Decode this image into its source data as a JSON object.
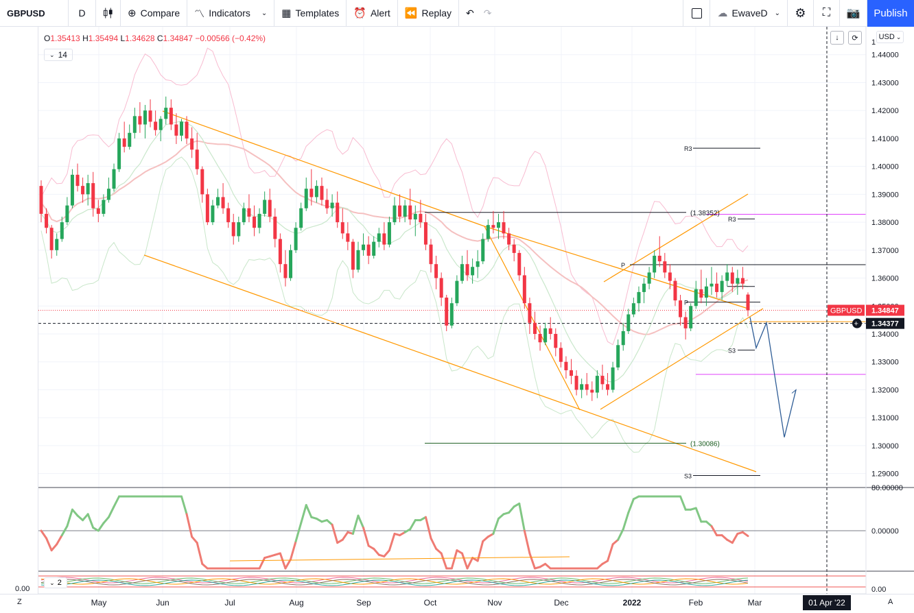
{
  "toolbar": {
    "symbol": "GBPUSD",
    "interval": "D",
    "compare": "Compare",
    "indicators": "Indicators",
    "templates": "Templates",
    "alert": "Alert",
    "replay": "Replay",
    "account": "EwaveD",
    "publish": "Publish"
  },
  "legend": {
    "o_label": "O",
    "o_value": "1.35413",
    "h_label": "H",
    "h_value": "1.35494",
    "l_label": "L",
    "l_value": "1.34628",
    "c_label": "C",
    "c_value": "1.34847",
    "change": "−0.00566 (−0.42%)",
    "input_value": "14",
    "osc2_input": "2"
  },
  "currency": "USD",
  "bottom": {
    "left_z": "Z",
    "right_a": "A",
    "date_label": "01 Apr '22"
  },
  "colors": {
    "up": "#26a65b",
    "down": "#f23645",
    "orange": "#ff9800",
    "magenta": "#e040fb",
    "arrow": "#2f5d96",
    "accent": "#2962ff"
  },
  "chart_data": {
    "type": "candlestick",
    "symbol": "GBPUSD",
    "ylim": [
      1.285,
      1.45
    ],
    "y_ticks": [
      "1.44000",
      "1.43000",
      "1.42000",
      "1.41000",
      "1.40000",
      "1.39000",
      "1.38000",
      "1.37000",
      "1.36000",
      "1.35000",
      "1.34000",
      "1.33000",
      "1.32000",
      "1.31000",
      "1.30000",
      "1.29000"
    ],
    "y_ticks_partial": [
      "1"
    ],
    "x_ticks": [
      "May",
      "Jun",
      "Jul",
      "Aug",
      "Sep",
      "Oct",
      "Nov",
      "Dec",
      "2022",
      "Feb",
      "Mar"
    ],
    "last_price_label": "GBPUSD",
    "last_price": "1.34847",
    "crosshair_price": "1.34377",
    "annotations": {
      "level_high": "(1.38352)",
      "level_low": "(1.30086)",
      "r3": "R3",
      "s3": "S3",
      "p": "P"
    },
    "candles": [
      [
        1.393,
        1.395,
        1.38,
        1.383
      ],
      [
        1.383,
        1.385,
        1.376,
        1.378
      ],
      [
        1.378,
        1.379,
        1.367,
        1.37
      ],
      [
        1.37,
        1.376,
        1.368,
        1.374
      ],
      [
        1.374,
        1.382,
        1.373,
        1.38
      ],
      [
        1.38,
        1.389,
        1.379,
        1.386
      ],
      [
        1.386,
        1.399,
        1.385,
        1.397
      ],
      [
        1.397,
        1.401,
        1.391,
        1.393
      ],
      [
        1.393,
        1.396,
        1.387,
        1.39
      ],
      [
        1.39,
        1.397,
        1.386,
        1.394
      ],
      [
        1.394,
        1.398,
        1.382,
        1.385
      ],
      [
        1.385,
        1.388,
        1.38,
        1.383
      ],
      [
        1.383,
        1.39,
        1.382,
        1.388
      ],
      [
        1.388,
        1.396,
        1.387,
        1.392
      ],
      [
        1.392,
        1.401,
        1.391,
        1.399
      ],
      [
        1.399,
        1.412,
        1.398,
        1.41
      ],
      [
        1.41,
        1.416,
        1.405,
        1.407
      ],
      [
        1.407,
        1.415,
        1.406,
        1.412
      ],
      [
        1.412,
        1.421,
        1.41,
        1.418
      ],
      [
        1.418,
        1.423,
        1.412,
        1.415
      ],
      [
        1.415,
        1.422,
        1.41,
        1.42
      ],
      [
        1.42,
        1.424,
        1.414,
        1.416
      ],
      [
        1.416,
        1.42,
        1.411,
        1.413
      ],
      [
        1.413,
        1.418,
        1.409,
        1.417
      ],
      [
        1.417,
        1.425,
        1.415,
        1.421
      ],
      [
        1.421,
        1.424,
        1.413,
        1.415
      ],
      [
        1.415,
        1.419,
        1.408,
        1.411
      ],
      [
        1.411,
        1.417,
        1.409,
        1.416
      ],
      [
        1.416,
        1.418,
        1.408,
        1.41
      ],
      [
        1.41,
        1.414,
        1.403,
        1.406
      ],
      [
        1.406,
        1.412,
        1.397,
        1.399
      ],
      [
        1.399,
        1.4,
        1.387,
        1.39
      ],
      [
        1.39,
        1.392,
        1.379,
        1.38
      ],
      [
        1.38,
        1.388,
        1.379,
        1.386
      ],
      [
        1.386,
        1.392,
        1.385,
        1.389
      ],
      [
        1.389,
        1.394,
        1.383,
        1.385
      ],
      [
        1.385,
        1.387,
        1.378,
        1.38
      ],
      [
        1.38,
        1.383,
        1.372,
        1.375
      ],
      [
        1.375,
        1.382,
        1.373,
        1.38
      ],
      [
        1.38,
        1.387,
        1.379,
        1.385
      ],
      [
        1.385,
        1.39,
        1.38,
        1.382
      ],
      [
        1.382,
        1.386,
        1.375,
        1.378
      ],
      [
        1.378,
        1.385,
        1.376,
        1.383
      ],
      [
        1.383,
        1.391,
        1.382,
        1.388
      ],
      [
        1.388,
        1.392,
        1.38,
        1.382
      ],
      [
        1.382,
        1.385,
        1.371,
        1.374
      ],
      [
        1.374,
        1.376,
        1.362,
        1.365
      ],
      [
        1.365,
        1.37,
        1.357,
        1.36
      ],
      [
        1.36,
        1.372,
        1.359,
        1.37
      ],
      [
        1.37,
        1.38,
        1.369,
        1.378
      ],
      [
        1.378,
        1.387,
        1.377,
        1.385
      ],
      [
        1.385,
        1.396,
        1.384,
        1.392
      ],
      [
        1.392,
        1.399,
        1.386,
        1.389
      ],
      [
        1.389,
        1.395,
        1.387,
        1.393
      ],
      [
        1.393,
        1.396,
        1.386,
        1.388
      ],
      [
        1.388,
        1.392,
        1.383,
        1.385
      ],
      [
        1.385,
        1.39,
        1.382,
        1.387
      ],
      [
        1.387,
        1.391,
        1.378,
        1.38
      ],
      [
        1.38,
        1.385,
        1.374,
        1.376
      ],
      [
        1.376,
        1.38,
        1.37,
        1.373
      ],
      [
        1.373,
        1.374,
        1.36,
        1.363
      ],
      [
        1.363,
        1.373,
        1.362,
        1.37
      ],
      [
        1.37,
        1.376,
        1.368,
        1.372
      ],
      [
        1.372,
        1.375,
        1.365,
        1.368
      ],
      [
        1.368,
        1.375,
        1.367,
        1.373
      ],
      [
        1.373,
        1.378,
        1.371,
        1.376
      ],
      [
        1.376,
        1.38,
        1.37,
        1.372
      ],
      [
        1.372,
        1.382,
        1.371,
        1.38
      ],
      [
        1.38,
        1.389,
        1.379,
        1.386
      ],
      [
        1.386,
        1.39,
        1.38,
        1.382
      ],
      [
        1.382,
        1.388,
        1.38,
        1.386
      ],
      [
        1.386,
        1.392,
        1.379,
        1.381
      ],
      [
        1.381,
        1.386,
        1.375,
        1.383
      ],
      [
        1.383,
        1.388,
        1.378,
        1.38
      ],
      [
        1.38,
        1.383,
        1.37,
        1.372
      ],
      [
        1.372,
        1.374,
        1.362,
        1.365
      ],
      [
        1.365,
        1.368,
        1.356,
        1.36
      ],
      [
        1.36,
        1.362,
        1.35,
        1.353
      ],
      [
        1.353,
        1.354,
        1.341,
        1.343
      ],
      [
        1.343,
        1.353,
        1.342,
        1.351
      ],
      [
        1.351,
        1.361,
        1.35,
        1.359
      ],
      [
        1.359,
        1.368,
        1.358,
        1.365
      ],
      [
        1.365,
        1.37,
        1.359,
        1.361
      ],
      [
        1.361,
        1.367,
        1.358,
        1.364
      ],
      [
        1.364,
        1.37,
        1.36,
        1.366
      ],
      [
        1.366,
        1.376,
        1.365,
        1.374
      ],
      [
        1.374,
        1.381,
        1.373,
        1.379
      ],
      [
        1.379,
        1.384,
        1.376,
        1.378
      ],
      [
        1.378,
        1.383,
        1.374,
        1.38
      ],
      [
        1.38,
        1.384,
        1.374,
        1.376
      ],
      [
        1.376,
        1.378,
        1.37,
        1.372
      ],
      [
        1.372,
        1.374,
        1.366,
        1.369
      ],
      [
        1.369,
        1.37,
        1.359,
        1.361
      ],
      [
        1.361,
        1.364,
        1.349,
        1.351
      ],
      [
        1.351,
        1.353,
        1.34,
        1.344
      ],
      [
        1.344,
        1.348,
        1.338,
        1.34
      ],
      [
        1.34,
        1.343,
        1.334,
        1.337
      ],
      [
        1.337,
        1.344,
        1.336,
        1.342
      ],
      [
        1.342,
        1.346,
        1.338,
        1.34
      ],
      [
        1.34,
        1.342,
        1.332,
        1.335
      ],
      [
        1.335,
        1.337,
        1.328,
        1.33
      ],
      [
        1.33,
        1.332,
        1.324,
        1.327
      ],
      [
        1.327,
        1.331,
        1.322,
        1.325
      ],
      [
        1.325,
        1.327,
        1.318,
        1.32
      ],
      [
        1.32,
        1.324,
        1.317,
        1.322
      ],
      [
        1.322,
        1.326,
        1.318,
        1.32
      ],
      [
        1.32,
        1.323,
        1.316,
        1.319
      ],
      [
        1.319,
        1.327,
        1.317,
        1.325
      ],
      [
        1.325,
        1.329,
        1.32,
        1.322
      ],
      [
        1.322,
        1.326,
        1.318,
        1.32
      ],
      [
        1.32,
        1.33,
        1.319,
        1.328
      ],
      [
        1.328,
        1.338,
        1.327,
        1.336
      ],
      [
        1.336,
        1.344,
        1.334,
        1.341
      ],
      [
        1.341,
        1.349,
        1.34,
        1.347
      ],
      [
        1.347,
        1.353,
        1.346,
        1.351
      ],
      [
        1.351,
        1.357,
        1.348,
        1.355
      ],
      [
        1.355,
        1.36,
        1.351,
        1.358
      ],
      [
        1.358,
        1.364,
        1.356,
        1.362
      ],
      [
        1.362,
        1.37,
        1.36,
        1.368
      ],
      [
        1.368,
        1.375,
        1.364,
        1.366
      ],
      [
        1.366,
        1.369,
        1.36,
        1.362
      ],
      [
        1.362,
        1.365,
        1.356,
        1.359
      ],
      [
        1.359,
        1.36,
        1.35,
        1.352
      ],
      [
        1.352,
        1.354,
        1.343,
        1.346
      ],
      [
        1.346,
        1.348,
        1.338,
        1.342
      ],
      [
        1.342,
        1.351,
        1.341,
        1.35
      ],
      [
        1.35,
        1.359,
        1.349,
        1.356
      ],
      [
        1.356,
        1.363,
        1.351,
        1.353
      ],
      [
        1.353,
        1.36,
        1.35,
        1.357
      ],
      [
        1.357,
        1.364,
        1.354,
        1.358
      ],
      [
        1.358,
        1.362,
        1.353,
        1.355
      ],
      [
        1.355,
        1.361,
        1.352,
        1.359
      ],
      [
        1.359,
        1.365,
        1.357,
        1.362
      ],
      [
        1.362,
        1.364,
        1.355,
        1.358
      ],
      [
        1.358,
        1.363,
        1.354,
        1.36
      ],
      [
        1.36,
        1.364,
        1.356,
        1.358
      ],
      [
        1.3541,
        1.3549,
        1.3463,
        1.3485
      ]
    ],
    "forecast_path": [
      1.346,
      1.335,
      1.344,
      1.303,
      1.32
    ]
  }
}
